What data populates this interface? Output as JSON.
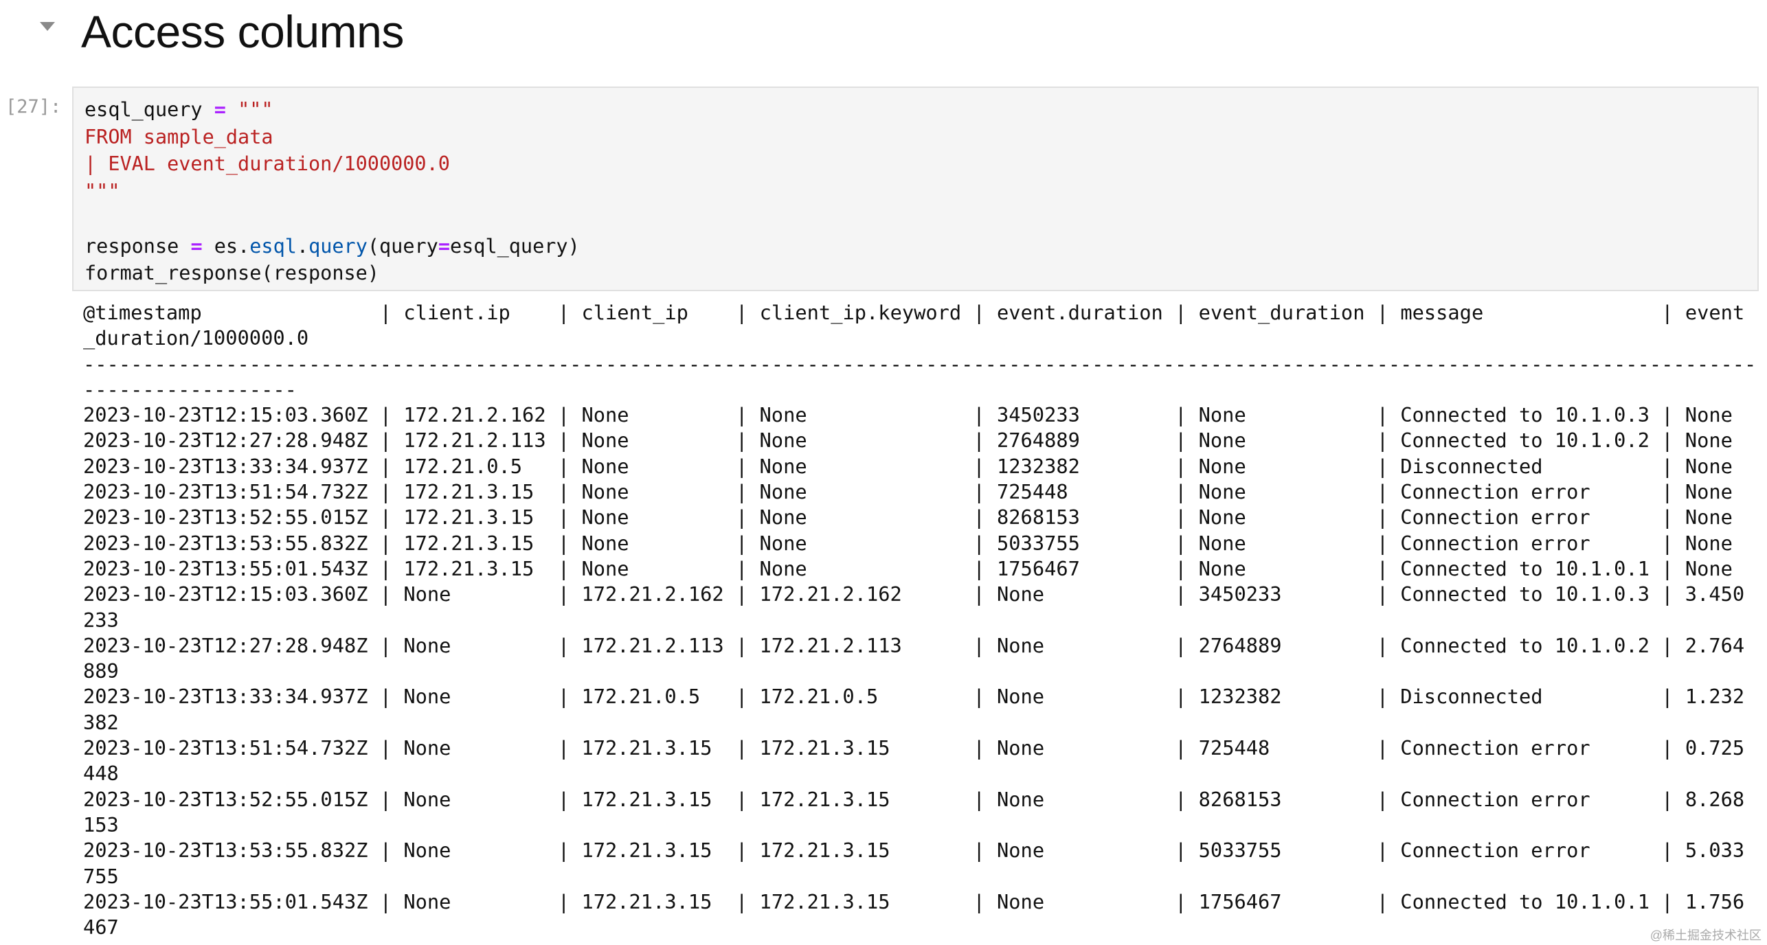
{
  "heading": {
    "title": "Access columns",
    "collapse_icon": "caret-down-icon"
  },
  "cell": {
    "prompt": "[27]:",
    "code_lines": [
      [
        [
          "esql_query ",
          ""
        ],
        [
          "=",
          "op"
        ],
        [
          " ",
          ""
        ],
        [
          "\"\"\"",
          "str"
        ]
      ],
      [
        [
          "FROM sample_data",
          "str"
        ]
      ],
      [
        [
          "| EVAL event_duration/1000000.0",
          "str"
        ]
      ],
      [
        [
          "\"\"\"",
          "str"
        ]
      ],
      [
        [
          "",
          ""
        ]
      ],
      [
        [
          "response ",
          ""
        ],
        [
          "=",
          "op"
        ],
        [
          " es.",
          ""
        ],
        [
          "esql",
          "attr"
        ],
        [
          ".",
          ""
        ],
        [
          "query",
          "attr"
        ],
        [
          "(query",
          ""
        ],
        [
          "=",
          "op"
        ],
        [
          "esql_query)",
          ""
        ]
      ],
      [
        [
          "format_response(response)",
          ""
        ]
      ]
    ]
  },
  "output": {
    "column_widths": [
      24,
      12,
      12,
      17,
      14,
      14,
      21,
      0
    ],
    "headers": [
      "@timestamp",
      "client.ip",
      "client_ip",
      "client_ip.keyword",
      "event.duration",
      "event_duration",
      "message",
      "event_duration/1000000.0"
    ],
    "rows": [
      [
        "2023-10-23T12:15:03.360Z",
        "172.21.2.162",
        "None",
        "None",
        "3450233",
        "None",
        "Connected to 10.1.0.3",
        "None"
      ],
      [
        "2023-10-23T12:27:28.948Z",
        "172.21.2.113",
        "None",
        "None",
        "2764889",
        "None",
        "Connected to 10.1.0.2",
        "None"
      ],
      [
        "2023-10-23T13:33:34.937Z",
        "172.21.0.5",
        "None",
        "None",
        "1232382",
        "None",
        "Disconnected",
        "None"
      ],
      [
        "2023-10-23T13:51:54.732Z",
        "172.21.3.15",
        "None",
        "None",
        "725448",
        "None",
        "Connection error",
        "None"
      ],
      [
        "2023-10-23T13:52:55.015Z",
        "172.21.3.15",
        "None",
        "None",
        "8268153",
        "None",
        "Connection error",
        "None"
      ],
      [
        "2023-10-23T13:53:55.832Z",
        "172.21.3.15",
        "None",
        "None",
        "5033755",
        "None",
        "Connection error",
        "None"
      ],
      [
        "2023-10-23T13:55:01.543Z",
        "172.21.3.15",
        "None",
        "None",
        "1756467",
        "None",
        "Connected to 10.1.0.1",
        "None"
      ],
      [
        "2023-10-23T12:15:03.360Z",
        "None",
        "172.21.2.162",
        "172.21.2.162",
        "None",
        "3450233",
        "Connected to 10.1.0.3",
        "3.450233"
      ],
      [
        "2023-10-23T12:27:28.948Z",
        "None",
        "172.21.2.113",
        "172.21.2.113",
        "None",
        "2764889",
        "Connected to 10.1.0.2",
        "2.764889"
      ],
      [
        "2023-10-23T13:33:34.937Z",
        "None",
        "172.21.0.5",
        "172.21.0.5",
        "None",
        "1232382",
        "Disconnected",
        "1.232382"
      ],
      [
        "2023-10-23T13:51:54.732Z",
        "None",
        "172.21.3.15",
        "172.21.3.15",
        "None",
        "725448",
        "Connection error",
        "0.725448"
      ],
      [
        "2023-10-23T13:52:55.015Z",
        "None",
        "172.21.3.15",
        "172.21.3.15",
        "None",
        "8268153",
        "Connection error",
        "8.268153"
      ],
      [
        "2023-10-23T13:53:55.832Z",
        "None",
        "172.21.3.15",
        "172.21.3.15",
        "None",
        "5033755",
        "Connection error",
        "5.033755"
      ],
      [
        "2023-10-23T13:55:01.543Z",
        "None",
        "172.21.3.15",
        "172.21.3.15",
        "None",
        "1756467",
        "Connected to 10.1.0.1",
        "1.756467"
      ]
    ]
  },
  "watermark": "@稀土掘金技术社区"
}
